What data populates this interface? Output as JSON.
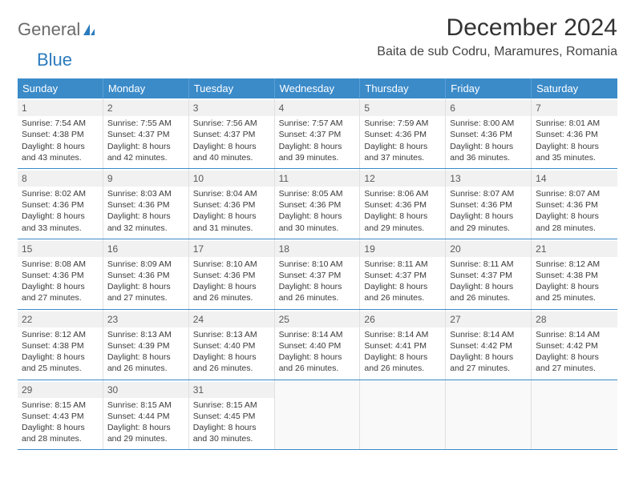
{
  "logo": {
    "part1": "General",
    "part2": "Blue"
  },
  "title": "December 2024",
  "location": "Baita de sub Codru, Maramures, Romania",
  "weekdays": [
    "Sunday",
    "Monday",
    "Tuesday",
    "Wednesday",
    "Thursday",
    "Friday",
    "Saturday"
  ],
  "colors": {
    "header_bg": "#3b8bc9",
    "header_text": "#ffffff",
    "border": "#3b8bc9",
    "daynum_bg": "#f1f1f1",
    "text": "#3a3a3a"
  },
  "weeks": [
    [
      {
        "n": "1",
        "sr": "7:54 AM",
        "ss": "4:38 PM",
        "dl": "8 hours and 43 minutes."
      },
      {
        "n": "2",
        "sr": "7:55 AM",
        "ss": "4:37 PM",
        "dl": "8 hours and 42 minutes."
      },
      {
        "n": "3",
        "sr": "7:56 AM",
        "ss": "4:37 PM",
        "dl": "8 hours and 40 minutes."
      },
      {
        "n": "4",
        "sr": "7:57 AM",
        "ss": "4:37 PM",
        "dl": "8 hours and 39 minutes."
      },
      {
        "n": "5",
        "sr": "7:59 AM",
        "ss": "4:36 PM",
        "dl": "8 hours and 37 minutes."
      },
      {
        "n": "6",
        "sr": "8:00 AM",
        "ss": "4:36 PM",
        "dl": "8 hours and 36 minutes."
      },
      {
        "n": "7",
        "sr": "8:01 AM",
        "ss": "4:36 PM",
        "dl": "8 hours and 35 minutes."
      }
    ],
    [
      {
        "n": "8",
        "sr": "8:02 AM",
        "ss": "4:36 PM",
        "dl": "8 hours and 33 minutes."
      },
      {
        "n": "9",
        "sr": "8:03 AM",
        "ss": "4:36 PM",
        "dl": "8 hours and 32 minutes."
      },
      {
        "n": "10",
        "sr": "8:04 AM",
        "ss": "4:36 PM",
        "dl": "8 hours and 31 minutes."
      },
      {
        "n": "11",
        "sr": "8:05 AM",
        "ss": "4:36 PM",
        "dl": "8 hours and 30 minutes."
      },
      {
        "n": "12",
        "sr": "8:06 AM",
        "ss": "4:36 PM",
        "dl": "8 hours and 29 minutes."
      },
      {
        "n": "13",
        "sr": "8:07 AM",
        "ss": "4:36 PM",
        "dl": "8 hours and 29 minutes."
      },
      {
        "n": "14",
        "sr": "8:07 AM",
        "ss": "4:36 PM",
        "dl": "8 hours and 28 minutes."
      }
    ],
    [
      {
        "n": "15",
        "sr": "8:08 AM",
        "ss": "4:36 PM",
        "dl": "8 hours and 27 minutes."
      },
      {
        "n": "16",
        "sr": "8:09 AM",
        "ss": "4:36 PM",
        "dl": "8 hours and 27 minutes."
      },
      {
        "n": "17",
        "sr": "8:10 AM",
        "ss": "4:36 PM",
        "dl": "8 hours and 26 minutes."
      },
      {
        "n": "18",
        "sr": "8:10 AM",
        "ss": "4:37 PM",
        "dl": "8 hours and 26 minutes."
      },
      {
        "n": "19",
        "sr": "8:11 AM",
        "ss": "4:37 PM",
        "dl": "8 hours and 26 minutes."
      },
      {
        "n": "20",
        "sr": "8:11 AM",
        "ss": "4:37 PM",
        "dl": "8 hours and 26 minutes."
      },
      {
        "n": "21",
        "sr": "8:12 AM",
        "ss": "4:38 PM",
        "dl": "8 hours and 25 minutes."
      }
    ],
    [
      {
        "n": "22",
        "sr": "8:12 AM",
        "ss": "4:38 PM",
        "dl": "8 hours and 25 minutes."
      },
      {
        "n": "23",
        "sr": "8:13 AM",
        "ss": "4:39 PM",
        "dl": "8 hours and 26 minutes."
      },
      {
        "n": "24",
        "sr": "8:13 AM",
        "ss": "4:40 PM",
        "dl": "8 hours and 26 minutes."
      },
      {
        "n": "25",
        "sr": "8:14 AM",
        "ss": "4:40 PM",
        "dl": "8 hours and 26 minutes."
      },
      {
        "n": "26",
        "sr": "8:14 AM",
        "ss": "4:41 PM",
        "dl": "8 hours and 26 minutes."
      },
      {
        "n": "27",
        "sr": "8:14 AM",
        "ss": "4:42 PM",
        "dl": "8 hours and 27 minutes."
      },
      {
        "n": "28",
        "sr": "8:14 AM",
        "ss": "4:42 PM",
        "dl": "8 hours and 27 minutes."
      }
    ],
    [
      {
        "n": "29",
        "sr": "8:15 AM",
        "ss": "4:43 PM",
        "dl": "8 hours and 28 minutes."
      },
      {
        "n": "30",
        "sr": "8:15 AM",
        "ss": "4:44 PM",
        "dl": "8 hours and 29 minutes."
      },
      {
        "n": "31",
        "sr": "8:15 AM",
        "ss": "4:45 PM",
        "dl": "8 hours and 30 minutes."
      },
      {
        "empty": true
      },
      {
        "empty": true
      },
      {
        "empty": true
      },
      {
        "empty": true
      }
    ]
  ],
  "labels": {
    "sunrise": "Sunrise: ",
    "sunset": "Sunset: ",
    "daylight": "Daylight: "
  }
}
